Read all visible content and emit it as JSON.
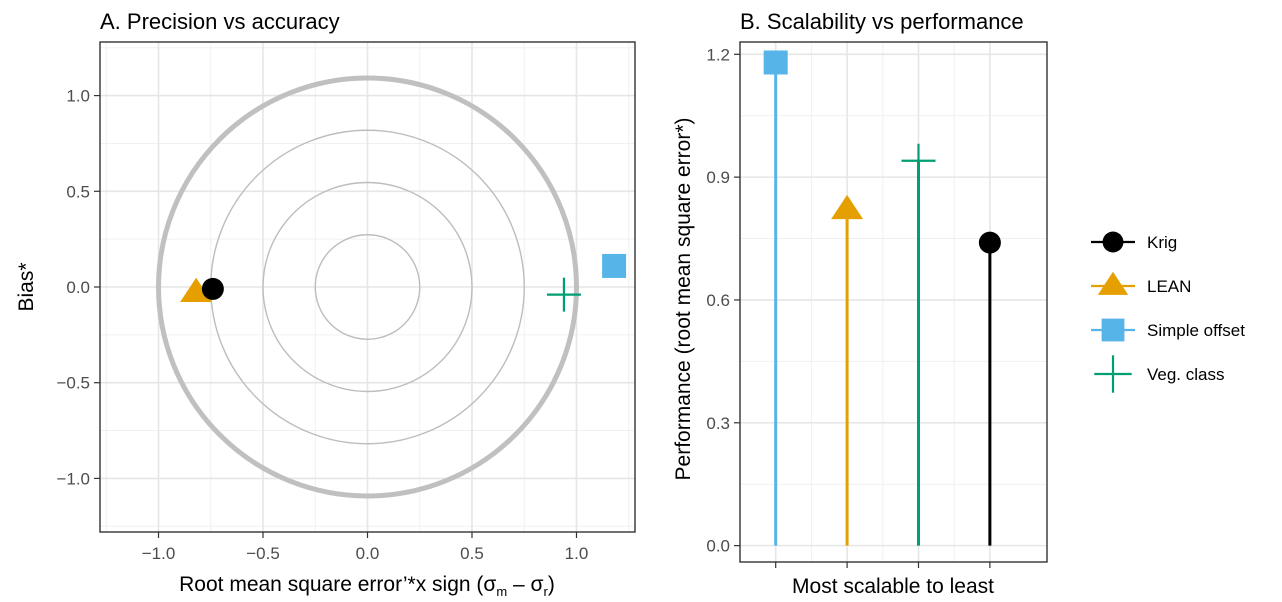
{
  "chart_data": [
    {
      "type": "scatter",
      "title": "A. Precision vs accuracy",
      "xlabel_parts": [
        "Root mean square error’*x sign (σ",
        "m",
        " – σ",
        "r",
        ")"
      ],
      "ylabel": "Bias*",
      "xlim": [
        -1.28,
        1.28
      ],
      "ylim": [
        -1.28,
        1.28
      ],
      "xticks": [
        -1.0,
        -0.5,
        0.0,
        0.5,
        1.0
      ],
      "xtick_labels": [
        "−1.0",
        "−0.5",
        "0.0",
        "0.5",
        "1.0"
      ],
      "yticks": [
        -1.0,
        -0.5,
        0.0,
        0.5,
        1.0
      ],
      "ytick_labels": [
        "−1.0",
        "−0.5",
        "0.0",
        "0.5",
        "1.0"
      ],
      "grid": true,
      "reference_circles": [
        {
          "radius": 0.25,
          "emphasis": "thin"
        },
        {
          "radius": 0.5,
          "emphasis": "thin"
        },
        {
          "radius": 0.75,
          "emphasis": "thin"
        },
        {
          "radius": 1.0,
          "emphasis": "thick"
        }
      ],
      "points": [
        {
          "series": "LEAN",
          "x": -0.82,
          "y": -0.03
        },
        {
          "series": "Krig",
          "x": -0.74,
          "y": -0.01
        },
        {
          "series": "Veg. class",
          "x": 0.94,
          "y": -0.04
        },
        {
          "series": "Simple offset",
          "x": 1.18,
          "y": 0.11
        }
      ]
    },
    {
      "type": "bar",
      "subtype": "lollipop",
      "title": "B. Scalability vs performance",
      "xlabel": "Most scalable to least",
      "ylabel": "Performance (root mean square error*)",
      "ylim": [
        -0.04,
        1.23
      ],
      "yticks": [
        0.0,
        0.3,
        0.6,
        0.9,
        1.2
      ],
      "ytick_labels": [
        "0.0",
        "0.3",
        "0.6",
        "0.9",
        "1.2"
      ],
      "grid": true,
      "categories": [
        "Simple offset",
        "LEAN",
        "Veg. class",
        "Krig"
      ],
      "values": [
        1.18,
        0.82,
        0.94,
        0.74
      ]
    }
  ],
  "legend": {
    "placement": "right",
    "entries": [
      {
        "label": "Krig",
        "shape": "circle",
        "color": "#000000"
      },
      {
        "label": "LEAN",
        "shape": "triangle",
        "color": "#E69F00"
      },
      {
        "label": "Simple offset",
        "shape": "square",
        "color": "#56B4E9"
      },
      {
        "label": "Veg. class",
        "shape": "plus",
        "color": "#009E73"
      }
    ]
  }
}
